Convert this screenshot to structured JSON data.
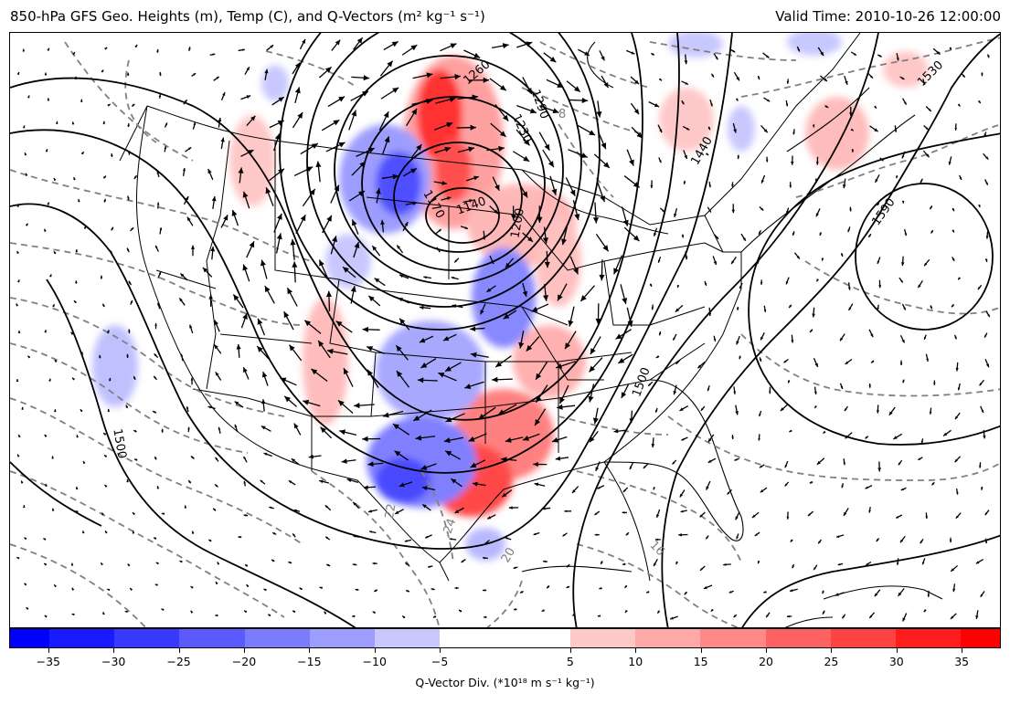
{
  "title_left": "850-hPa GFS Geo. Heights (m), Temp (C), and Q-Vectors (m² kg⁻¹ s⁻¹)",
  "title_right": "Valid Time: 2010-10-26 12:00:00",
  "height_contour_labels": [
    "1260",
    "1290",
    "1230",
    "1200",
    "1170",
    "1140",
    "1440",
    "1530",
    "1590",
    "1500",
    "1500"
  ],
  "temp_contour_labels": [
    "8",
    "22",
    "24",
    "20",
    "16"
  ],
  "colorbar": {
    "label": "Q-Vector Div. (*10¹⁸ m s⁻¹ kg⁻¹)",
    "range": [
      -38,
      38
    ],
    "boundaries": [
      -38,
      -35,
      -30,
      -25,
      -20,
      -15,
      -10,
      -5,
      5,
      10,
      15,
      20,
      25,
      30,
      35,
      38
    ],
    "colors": [
      "#0000ff",
      "#1a1aff",
      "#3a3aff",
      "#5a5aff",
      "#7b7bff",
      "#9d9dff",
      "#c8c8ff",
      "#ffffff",
      "#ffc8c8",
      "#ffa8a8",
      "#ff8888",
      "#ff6262",
      "#ff4242",
      "#ff1e1e",
      "#ff0000"
    ],
    "tick_labels": [
      "−35",
      "−30",
      "−25",
      "−20",
      "−15",
      "−10",
      "−5",
      "5",
      "10",
      "15",
      "20",
      "25",
      "30",
      "35"
    ],
    "tick_values": [
      -35,
      -30,
      -25,
      -20,
      -15,
      -10,
      -5,
      5,
      10,
      15,
      20,
      25,
      30,
      35
    ]
  },
  "colors": {
    "height_contour": "#000000",
    "temp_contour": "#808080",
    "boundaries": "#000000",
    "vectors": "#000000"
  }
}
